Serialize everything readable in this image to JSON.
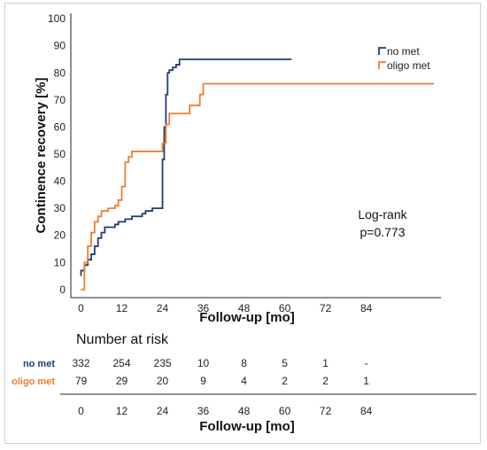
{
  "chart_data": {
    "type": "line",
    "step": true,
    "xlabel": "Follow-up [mo]",
    "ylabel": "Continence recovery [%]",
    "xticks": [
      0,
      12,
      24,
      36,
      48,
      60,
      72,
      84
    ],
    "yticks": [
      0,
      10,
      20,
      30,
      40,
      50,
      60,
      70,
      80,
      90,
      100
    ],
    "xlim": [
      -3,
      106
    ],
    "ylim": [
      -3,
      102
    ],
    "grid": false,
    "legend_position": "top-right",
    "series": [
      {
        "name": "no met",
        "color": "#1f3d6e",
        "x": [
          0,
          0,
          1,
          2,
          3,
          4,
          5,
          6,
          7,
          10,
          11,
          13,
          14,
          15,
          17,
          18,
          19,
          20,
          21,
          22,
          23,
          24,
          24.5,
          25,
          25.5,
          26,
          27,
          28,
          29,
          32,
          40,
          50,
          62
        ],
        "y": [
          5,
          7,
          9,
          11,
          13,
          16,
          19,
          21,
          23,
          24,
          25,
          26,
          26,
          27,
          27,
          28,
          29,
          29,
          30,
          30,
          30,
          48,
          60,
          72,
          80,
          81,
          82,
          83,
          85,
          85,
          85,
          85,
          85
        ]
      },
      {
        "name": "oligo met",
        "color": "#ee7d31",
        "x": [
          0,
          1,
          2,
          3,
          4,
          5,
          6,
          8,
          9,
          10,
          11,
          12,
          13,
          14,
          15,
          18,
          19,
          23,
          24,
          25,
          26,
          31,
          32,
          34,
          35,
          36,
          40,
          50,
          60,
          70,
          80,
          90,
          104
        ],
        "y": [
          0,
          10,
          16,
          21,
          25,
          27,
          29,
          30,
          30,
          31,
          33,
          38,
          47,
          49,
          51,
          51,
          51,
          51,
          54,
          61,
          65,
          65,
          68,
          68,
          72,
          76,
          76,
          76,
          76,
          76,
          76,
          76,
          76
        ]
      }
    ],
    "annotation": {
      "line1": "Log-rank",
      "line2": "p=0.773"
    },
    "risk_table": {
      "title": "Number at risk",
      "times": [
        "0",
        "12",
        "24",
        "36",
        "48",
        "60",
        "72",
        "84"
      ],
      "rows": [
        {
          "label": "no met",
          "color": "#1f3d6e",
          "values": [
            "332",
            "254",
            "235",
            "10",
            "8",
            "5",
            "1",
            "-"
          ]
        },
        {
          "label": "oligo met",
          "color": "#ee7d31",
          "values": [
            "79",
            "29",
            "20",
            "9",
            "4",
            "2",
            "2",
            "1"
          ]
        }
      ],
      "xlabel": "Follow-up [mo]"
    }
  }
}
